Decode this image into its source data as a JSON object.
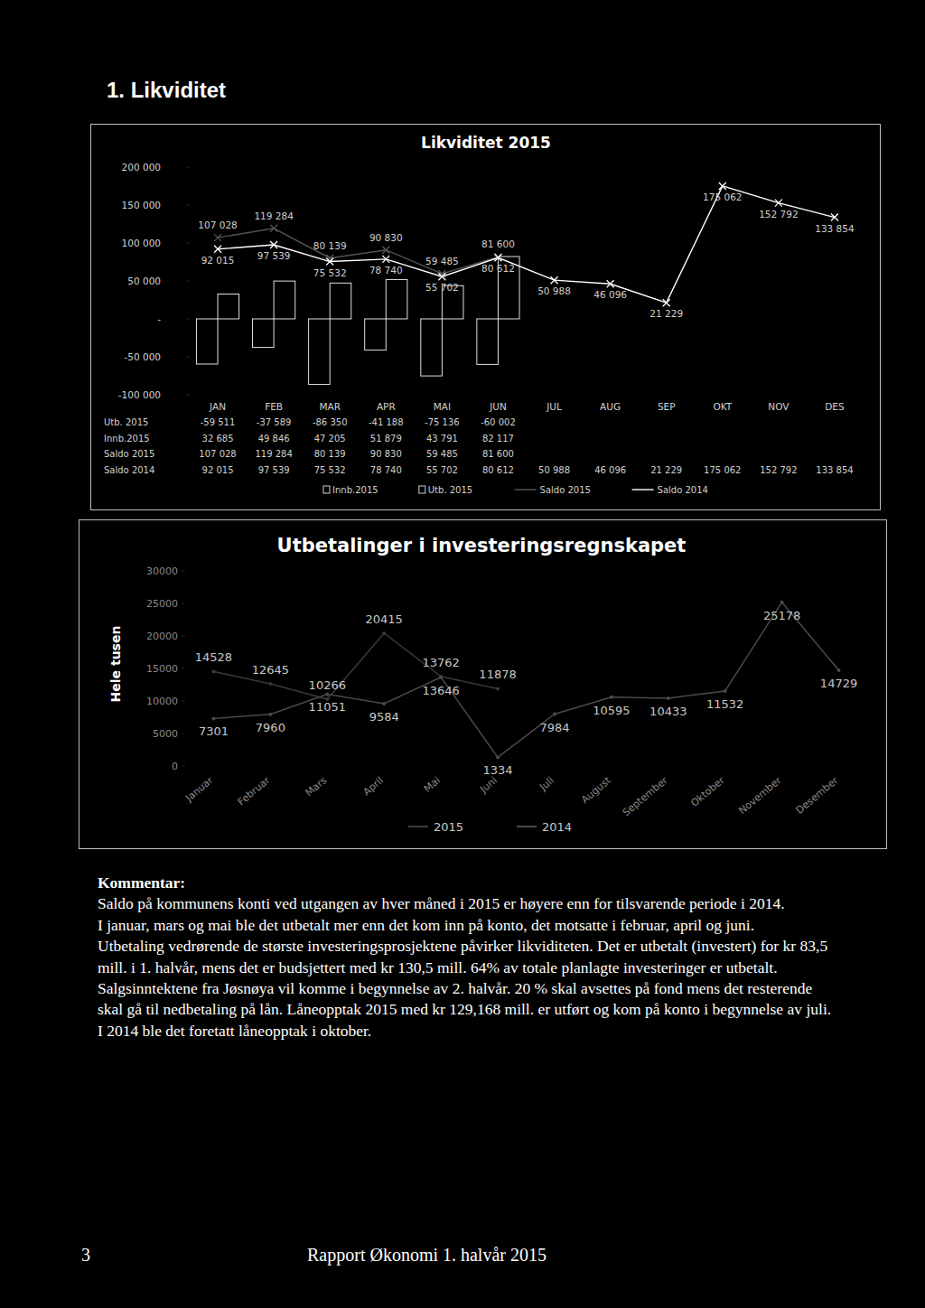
{
  "heading": "1. Likviditet",
  "chart_data": [
    {
      "type": "bar",
      "title": "Likviditet 2015",
      "categories": [
        "JAN",
        "FEB",
        "MAR",
        "APR",
        "MAI",
        "JUN",
        "JUL",
        "AUG",
        "SEP",
        "OKT",
        "NOV",
        "DES"
      ],
      "series": [
        {
          "name": "Utb. 2015",
          "type": "bar",
          "color": "#000000",
          "values": [
            -59511,
            -37589,
            -86350,
            -41188,
            -75136,
            -60002,
            null,
            null,
            null,
            null,
            null,
            null
          ],
          "value_labels": [
            "-59 511",
            "-37 589",
            "-86 350",
            "-41 188",
            "-75 136",
            "-60 002",
            null,
            null,
            null,
            null,
            null,
            null
          ]
        },
        {
          "name": "Innb.2015",
          "type": "bar",
          "color": "#000000",
          "values": [
            32685,
            49846,
            47205,
            51879,
            43791,
            82117,
            null,
            null,
            null,
            null,
            null,
            null
          ],
          "value_labels": [
            "32 685",
            "49 846",
            "47 205",
            "51 879",
            "43 791",
            "82 117",
            null,
            null,
            null,
            null,
            null,
            null
          ]
        },
        {
          "name": "Saldo 2015",
          "type": "line",
          "color": "#555555",
          "marker": "x",
          "data_labels": true,
          "values": [
            107028,
            119284,
            80139,
            90830,
            59485,
            81600,
            null,
            null,
            null,
            null,
            null,
            null
          ],
          "value_labels": [
            "107 028",
            "119 284",
            "80 139",
            "90 830",
            "59 485",
            "81 600",
            null,
            null,
            null,
            null,
            null,
            null
          ]
        },
        {
          "name": "Saldo 2014",
          "type": "line",
          "color": "#ffffff",
          "marker": "x",
          "data_labels": true,
          "values": [
            92015,
            97539,
            75532,
            78740,
            55702,
            80612,
            50988,
            46096,
            21229,
            175062,
            152792,
            133854
          ],
          "value_labels": [
            "92 015",
            "97 539",
            "75 532",
            "78 740",
            "55 702",
            "80 612",
            "50 988",
            "46 096",
            "21 229",
            "175 062",
            "152 792",
            "133 854"
          ]
        }
      ],
      "ylim": [
        -100000,
        200000
      ],
      "yticks": [
        {
          "value": -100000,
          "label": "-100 000"
        },
        {
          "value": -50000,
          "label": "-50 000"
        },
        {
          "value": 0,
          "label": "-"
        },
        {
          "value": 50000,
          "label": "50 000"
        },
        {
          "value": 100000,
          "label": "100 000"
        },
        {
          "value": 150000,
          "label": "150 000"
        },
        {
          "value": 200000,
          "label": "200 000"
        }
      ],
      "grid": false,
      "legend": "bottom"
    },
    {
      "type": "line",
      "title": "Utbetalinger i investeringsregnskapet",
      "ylabel": "Hele tusen",
      "categories": [
        "Januar",
        "Februar",
        "Mars",
        "April",
        "Mai",
        "Juni",
        "Juli",
        "August",
        "September",
        "Oktober",
        "November",
        "Desember"
      ],
      "series": [
        {
          "name": "2015",
          "color": "#3a3a3a",
          "values": [
            14528,
            12645,
            10266,
            20415,
            13762,
            11878,
            null,
            null,
            null,
            null,
            null,
            null
          ]
        },
        {
          "name": "2014",
          "color": "#4a4a4a",
          "values": [
            7301,
            7960,
            11051,
            9584,
            13646,
            1334,
            7984,
            10595,
            10433,
            11532,
            25178,
            14729
          ]
        }
      ],
      "ylim": [
        0,
        30000
      ],
      "yticks": [
        0,
        5000,
        10000,
        15000,
        20000,
        25000,
        30000
      ],
      "grid": false,
      "legend": "bottom",
      "data_labels": true
    }
  ],
  "comment": {
    "title": "Kommentar:",
    "paragraphs": [
      "Saldo på kommunens konti ved utgangen av hver måned i 2015 er høyere enn for tilsvarende periode i 2014.",
      "I januar, mars og mai ble det utbetalt mer enn det kom inn på konto, det motsatte i februar, april og juni.",
      "Utbetaling vedrørende de største investeringsprosjektene påvirker likviditeten. Det er utbetalt (investert) for kr 83,5 mill. i 1. halvår, mens det er budsjettert med kr 130,5 mill. 64% av totale planlagte investeringer er utbetalt.",
      "Salgsinntektene fra Jøsnøya vil komme i begynnelse av 2. halvår. 20 % skal avsettes på fond mens det resterende skal gå til nedbetaling på lån. Låneopptak 2015 med kr 129,168 mill. er utført og kom på konto i begynnelse av juli. I 2014 ble det foretatt låneopptak i oktober."
    ]
  },
  "footer": {
    "page": "3",
    "text": "Rapport Økonomi 1. halvår 2015"
  }
}
